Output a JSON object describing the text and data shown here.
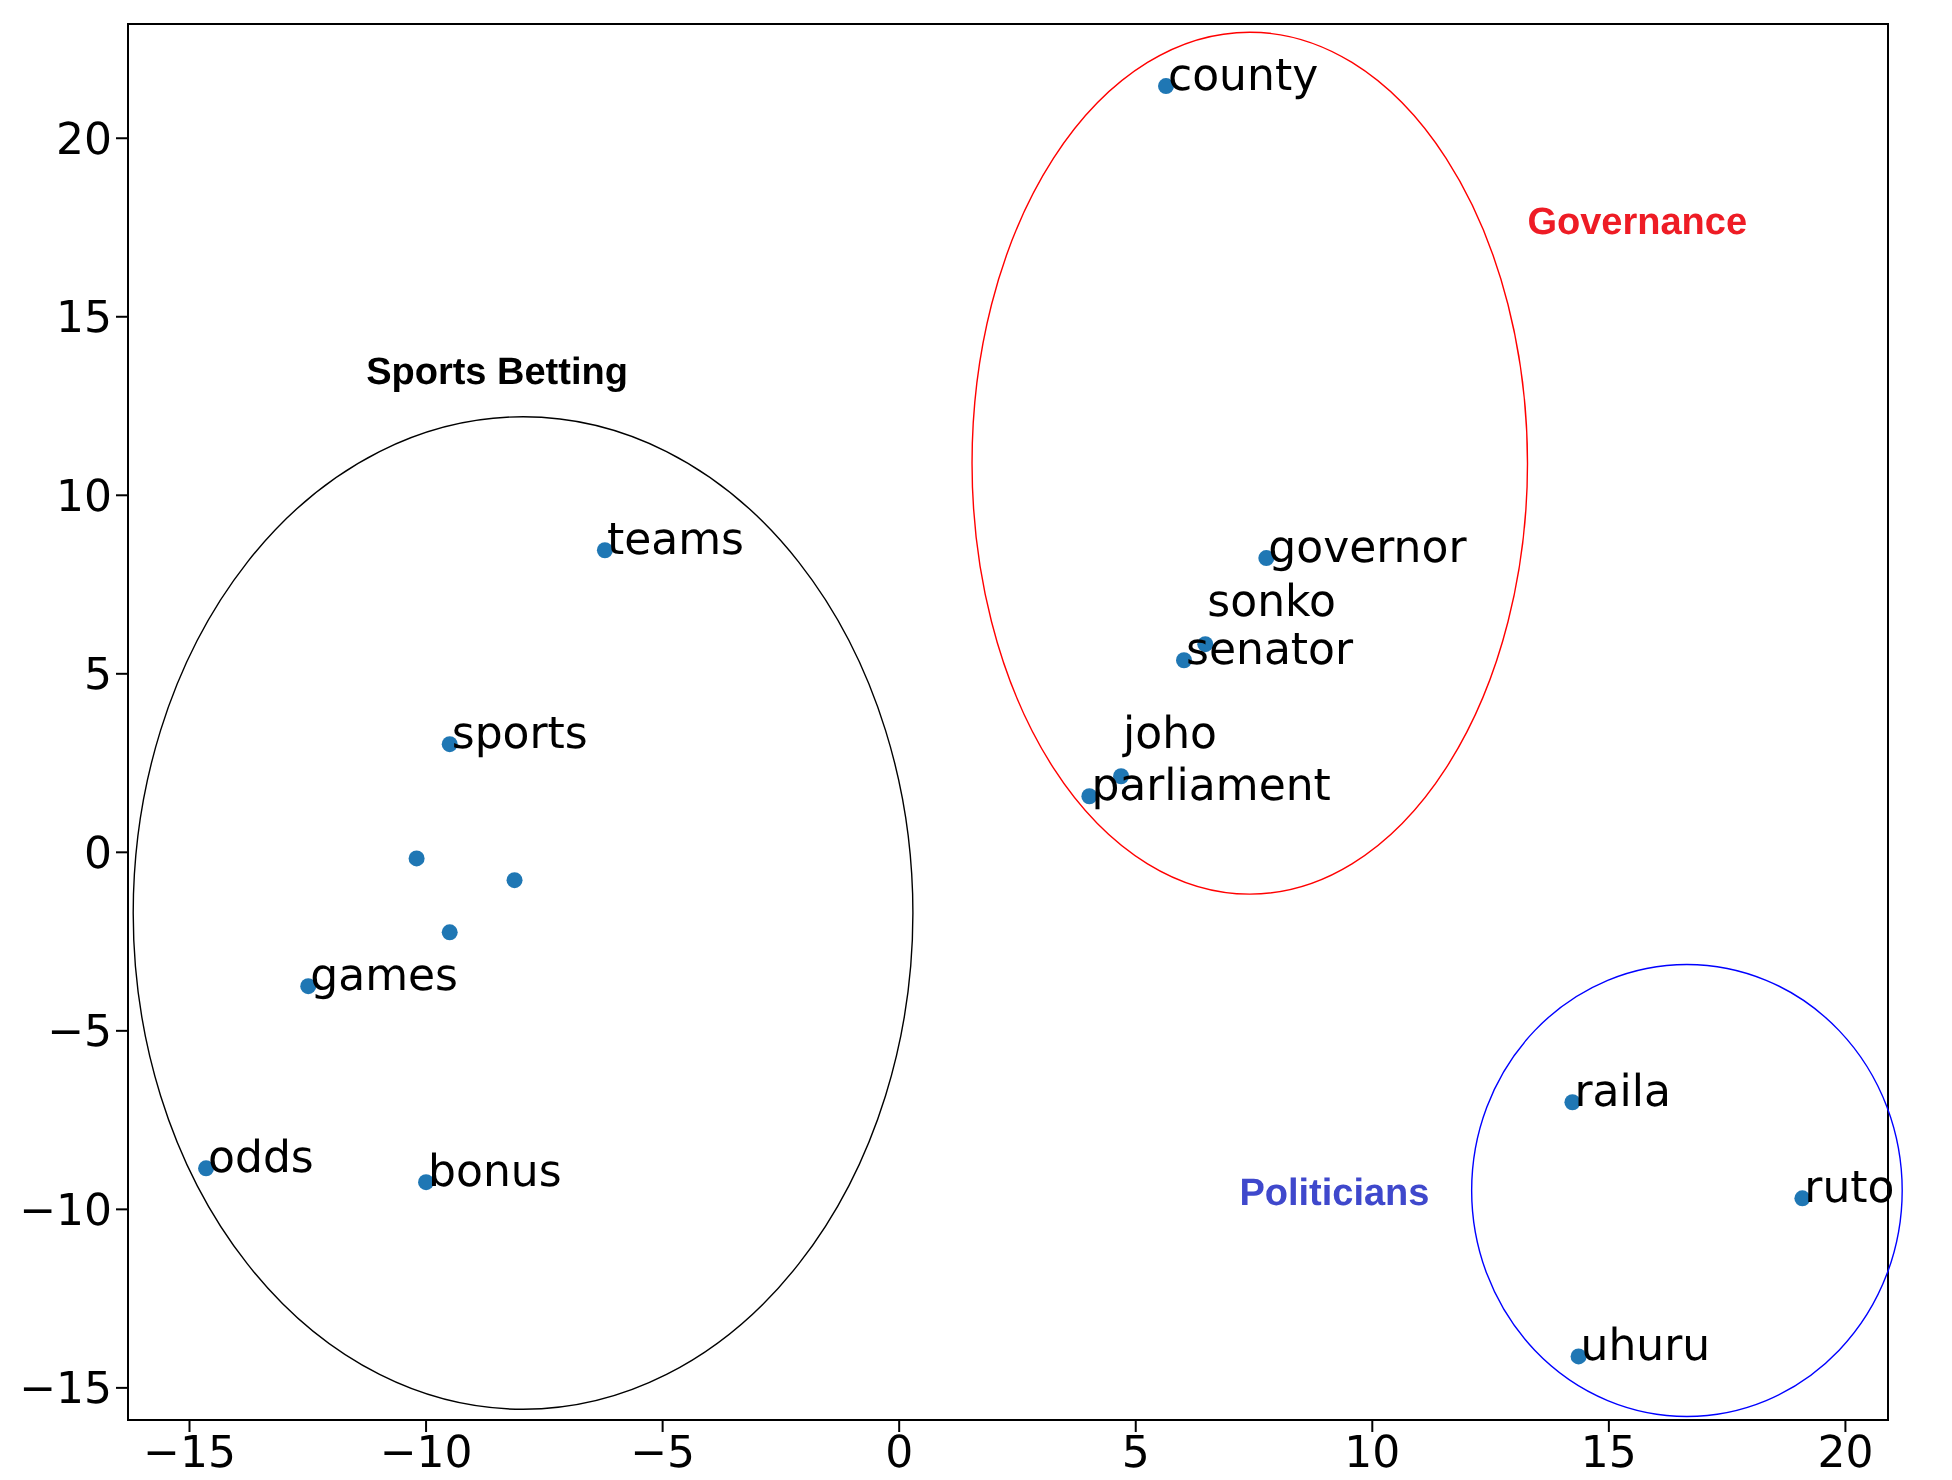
{
  "chart_data": {
    "type": "scatter",
    "x": [
      5.64,
      7.76,
      6.47,
      6.02,
      4.69,
      4.02,
      -6.22,
      -9.5,
      -10.2,
      -8.13,
      -9.5,
      -12.49,
      -14.65,
      -10.0,
      14.23,
      19.09,
      14.36
    ],
    "values": [
      21.46,
      8.24,
      5.83,
      5.38,
      2.13,
      1.57,
      8.46,
      3.03,
      -0.17,
      -0.78,
      -2.24,
      -3.75,
      -8.85,
      -9.24,
      -7.0,
      -9.69,
      -14.12
    ],
    "color": "#1f77b4",
    "marker": "circle",
    "xlim": [
      -16.3,
      20.9
    ],
    "xticks": [
      -15,
      -10,
      -5,
      0,
      5,
      10,
      15,
      20
    ],
    "ylim": [
      -15.9,
      23.2
    ],
    "yticks": [
      -15,
      -10,
      -5,
      0,
      5,
      10,
      15,
      20
    ],
    "grid": false,
    "legend": false,
    "annotations": [
      {
        "text": "county",
        "x": 5.64,
        "y": 21.46
      },
      {
        "text": "governor",
        "x": 7.76,
        "y": 8.24
      },
      {
        "text": "sonko",
        "x": 6.47,
        "y": 5.83
      },
      {
        "text": "senator",
        "x": 6.02,
        "y": 5.38
      },
      {
        "text": "joho",
        "x": 4.69,
        "y": 2.13
      },
      {
        "text": "parliament",
        "x": 4.02,
        "y": 1.57
      },
      {
        "text": "teams",
        "x": -6.22,
        "y": 8.46
      },
      {
        "text": "sports",
        "x": -9.5,
        "y": 3.03
      },
      {
        "text": "games",
        "x": -12.49,
        "y": -3.75
      },
      {
        "text": "odds",
        "x": -14.65,
        "y": -8.85
      },
      {
        "text": "bonus",
        "x": -10.0,
        "y": -9.24
      },
      {
        "text": "raila",
        "x": 14.23,
        "y": -7.0
      },
      {
        "text": "ruto",
        "x": 19.09,
        "y": -9.69
      },
      {
        "text": "uhuru",
        "x": 14.36,
        "y": -14.12
      },
      "Sports Betting",
      "Governance",
      "Politicians"
    ]
  }
}
